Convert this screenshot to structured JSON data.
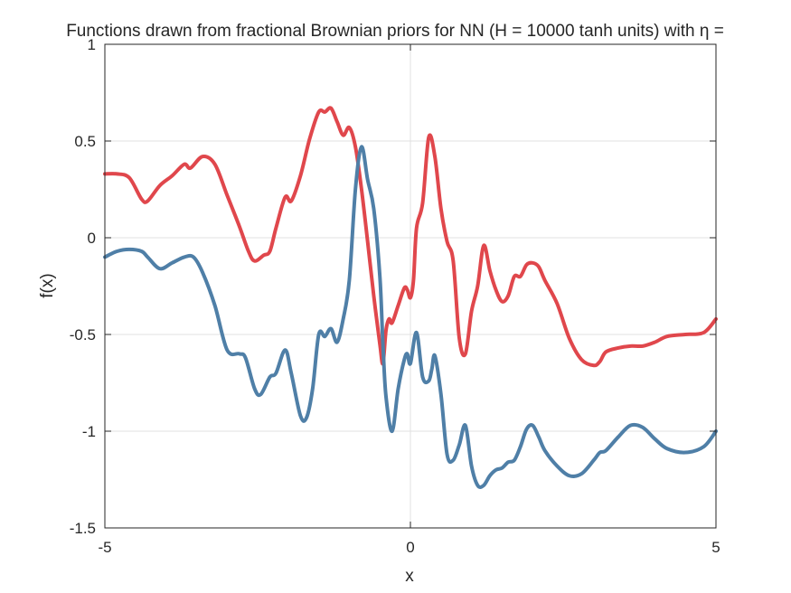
{
  "chart_data": {
    "type": "line",
    "title": "Functions drawn from fractional Brownian priors for NN (H = 10000 tanh units) with η =",
    "xlabel": "x",
    "ylabel": "f(x)",
    "xlim": [
      -5,
      5
    ],
    "ylim": [
      -1.5,
      1
    ],
    "xticks": [
      -5,
      0,
      5
    ],
    "xtick_labels": [
      "-5",
      "0",
      "5"
    ],
    "yticks": [
      -1.5,
      -1,
      -0.5,
      0,
      0.5,
      1
    ],
    "ytick_labels": [
      "-1.5",
      "-1",
      "-0.5",
      "0",
      "0.5",
      "1"
    ],
    "grid": true,
    "series": [
      {
        "color": "#e0474c",
        "x": [
          -5,
          -4.8,
          -4.6,
          -4.4,
          -4.3,
          -4.1,
          -3.9,
          -3.7,
          -3.6,
          -3.4,
          -3.2,
          -3.0,
          -2.8,
          -2.65,
          -2.55,
          -2.4,
          -2.3,
          -2.2,
          -2.05,
          -1.95,
          -1.8,
          -1.65,
          -1.5,
          -1.4,
          -1.3,
          -1.2,
          -1.1,
          -1.0,
          -0.9,
          -0.8,
          -0.7,
          -0.6,
          -0.5,
          -0.45,
          -0.4,
          -0.35,
          -0.3,
          -0.2,
          -0.1,
          -0.05,
          0,
          0.05,
          0.1,
          0.2,
          0.3,
          0.4,
          0.5,
          0.6,
          0.7,
          0.8,
          0.9,
          1.0,
          1.1,
          1.2,
          1.3,
          1.4,
          1.5,
          1.6,
          1.7,
          1.8,
          1.9,
          2.0,
          2.1,
          2.2,
          2.4,
          2.6,
          2.8,
          3.0,
          3.1,
          3.2,
          3.4,
          3.6,
          3.8,
          4.0,
          4.2,
          4.5,
          4.8,
          5.0
        ],
        "y": [
          0.33,
          0.33,
          0.31,
          0.2,
          0.19,
          0.27,
          0.32,
          0.38,
          0.36,
          0.42,
          0.38,
          0.22,
          0.06,
          -0.07,
          -0.12,
          -0.09,
          -0.07,
          0.05,
          0.21,
          0.19,
          0.32,
          0.51,
          0.65,
          0.65,
          0.67,
          0.6,
          0.53,
          0.57,
          0.47,
          0.25,
          -0.02,
          -0.3,
          -0.55,
          -0.65,
          -0.48,
          -0.42,
          -0.44,
          -0.35,
          -0.26,
          -0.27,
          -0.31,
          -0.22,
          0.05,
          0.18,
          0.52,
          0.42,
          0.15,
          -0.02,
          -0.12,
          -0.52,
          -0.6,
          -0.38,
          -0.25,
          -0.04,
          -0.17,
          -0.27,
          -0.33,
          -0.3,
          -0.2,
          -0.2,
          -0.14,
          -0.13,
          -0.15,
          -0.22,
          -0.34,
          -0.52,
          -0.63,
          -0.66,
          -0.64,
          -0.59,
          -0.57,
          -0.56,
          -0.56,
          -0.54,
          -0.51,
          -0.5,
          -0.49,
          -0.42
        ]
      },
      {
        "color": "#4f7fa7",
        "x": [
          -5,
          -4.8,
          -4.6,
          -4.4,
          -4.3,
          -4.1,
          -3.9,
          -3.7,
          -3.55,
          -3.4,
          -3.2,
          -3.0,
          -2.8,
          -2.7,
          -2.55,
          -2.45,
          -2.3,
          -2.2,
          -2.05,
          -1.95,
          -1.8,
          -1.7,
          -1.6,
          -1.5,
          -1.4,
          -1.3,
          -1.2,
          -1.1,
          -1.0,
          -0.9,
          -0.8,
          -0.7,
          -0.6,
          -0.5,
          -0.45,
          -0.4,
          -0.3,
          -0.2,
          -0.1,
          -0.05,
          0,
          0.1,
          0.2,
          0.3,
          0.35,
          0.4,
          0.5,
          0.6,
          0.7,
          0.8,
          0.9,
          1.0,
          1.1,
          1.2,
          1.3,
          1.4,
          1.5,
          1.6,
          1.7,
          1.8,
          1.9,
          2.0,
          2.1,
          2.2,
          2.4,
          2.6,
          2.8,
          3.0,
          3.1,
          3.2,
          3.4,
          3.6,
          3.8,
          4.0,
          4.2,
          4.5,
          4.8,
          5.0
        ],
        "y": [
          -0.1,
          -0.07,
          -0.06,
          -0.07,
          -0.1,
          -0.16,
          -0.13,
          -0.1,
          -0.1,
          -0.18,
          -0.35,
          -0.58,
          -0.6,
          -0.62,
          -0.78,
          -0.81,
          -0.72,
          -0.7,
          -0.58,
          -0.7,
          -0.92,
          -0.93,
          -0.78,
          -0.5,
          -0.51,
          -0.47,
          -0.54,
          -0.42,
          -0.22,
          0.25,
          0.47,
          0.3,
          0.15,
          -0.2,
          -0.55,
          -0.82,
          -1.0,
          -0.78,
          -0.63,
          -0.6,
          -0.65,
          -0.49,
          -0.72,
          -0.74,
          -0.68,
          -0.61,
          -0.81,
          -1.12,
          -1.15,
          -1.07,
          -0.97,
          -1.18,
          -1.28,
          -1.28,
          -1.23,
          -1.2,
          -1.19,
          -1.16,
          -1.15,
          -1.08,
          -0.99,
          -0.97,
          -1.03,
          -1.1,
          -1.18,
          -1.23,
          -1.22,
          -1.15,
          -1.11,
          -1.1,
          -1.03,
          -0.97,
          -0.98,
          -1.04,
          -1.09,
          -1.11,
          -1.08,
          -1.0
        ]
      }
    ]
  }
}
